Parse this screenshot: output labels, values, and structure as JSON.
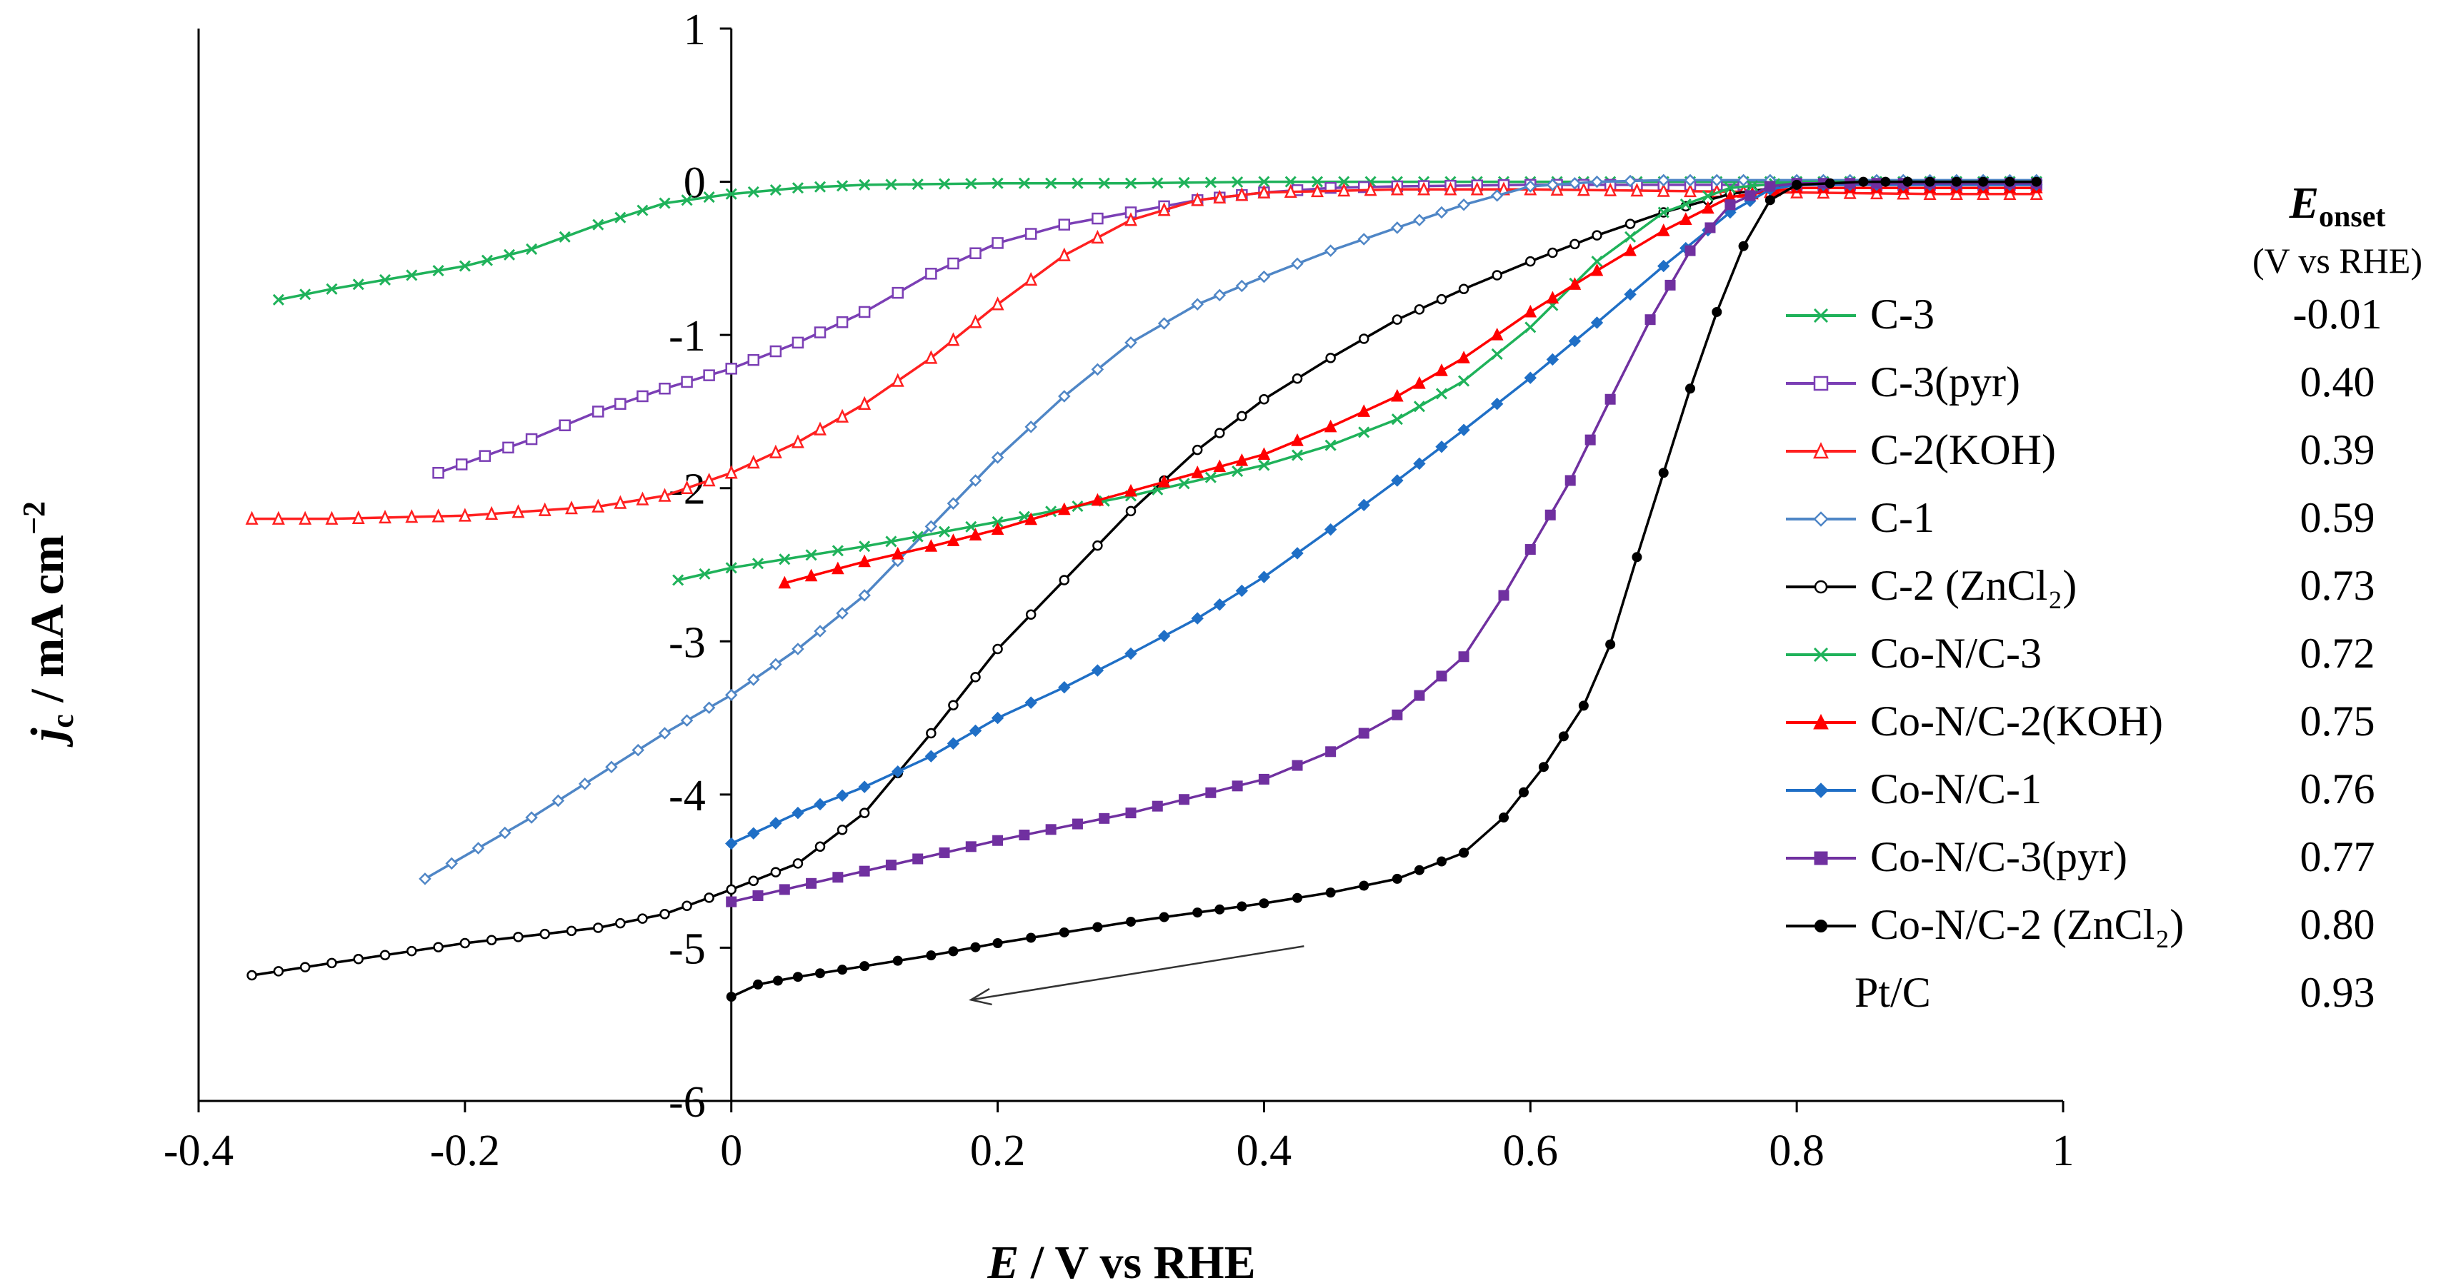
{
  "chart_data": {
    "type": "line",
    "title": "",
    "xlabel": {
      "italic": "E",
      "rest": " / V vs RHE"
    },
    "ylabel": {
      "italic": "j",
      "sub": "c",
      "rest": " / mA cm",
      "sup": "−2"
    },
    "xlim": [
      -0.4,
      1.0
    ],
    "ylim": [
      -6,
      1
    ],
    "xticks": [
      "-0.4",
      "-0.2",
      "0",
      "0.2",
      "0.4",
      "0.6",
      "0.8",
      "1"
    ],
    "yticks": [
      "-6",
      "-5",
      "-4",
      "-3",
      "-2",
      "-1",
      "0",
      "1"
    ],
    "grid": false,
    "onset_header": {
      "symbol": "E",
      "sub": "onset",
      "units": "(V vs RHE)"
    },
    "scan_direction_arrow": {
      "from": [
        0.43,
        -4.99
      ],
      "to": [
        0.18,
        -5.34
      ]
    },
    "series": [
      {
        "name": "C-3",
        "color": "#1fb25a",
        "marker": "x",
        "onset": "-0.01",
        "points": [
          [
            -0.34,
            -0.77
          ],
          [
            -0.3,
            -0.7
          ],
          [
            -0.26,
            -0.64
          ],
          [
            -0.2,
            -0.55
          ],
          [
            -0.15,
            -0.44
          ],
          [
            -0.1,
            -0.28
          ],
          [
            -0.05,
            -0.14
          ],
          [
            0.0,
            -0.08
          ],
          [
            0.05,
            -0.04
          ],
          [
            0.1,
            -0.02
          ],
          [
            0.2,
            -0.01
          ],
          [
            0.3,
            -0.01
          ],
          [
            0.4,
            0.0
          ],
          [
            0.5,
            0.0
          ],
          [
            0.6,
            0.0
          ],
          [
            0.7,
            0.0
          ],
          [
            0.8,
            0.0
          ],
          [
            0.9,
            0.0
          ],
          [
            0.98,
            0.0
          ]
        ]
      },
      {
        "name": "C-3(pyr)",
        "color": "#7b3fb5",
        "marker": "square-open",
        "onset": "0.40",
        "points": [
          [
            -0.22,
            -1.9
          ],
          [
            -0.15,
            -1.68
          ],
          [
            -0.1,
            -1.5
          ],
          [
            -0.05,
            -1.35
          ],
          [
            0.0,
            -1.22
          ],
          [
            0.05,
            -1.05
          ],
          [
            0.1,
            -0.85
          ],
          [
            0.15,
            -0.6
          ],
          [
            0.2,
            -0.4
          ],
          [
            0.25,
            -0.28
          ],
          [
            0.3,
            -0.2
          ],
          [
            0.35,
            -0.12
          ],
          [
            0.4,
            -0.07
          ],
          [
            0.45,
            -0.04
          ],
          [
            0.5,
            -0.03
          ],
          [
            0.6,
            -0.02
          ],
          [
            0.7,
            -0.02
          ],
          [
            0.8,
            -0.02
          ],
          [
            0.9,
            -0.02
          ],
          [
            0.98,
            -0.02
          ]
        ]
      },
      {
        "name": "C-2(KOH)",
        "color": "#ff2020",
        "marker": "triangle-open",
        "onset": "0.39",
        "points": [
          [
            -0.36,
            -2.2
          ],
          [
            -0.3,
            -2.2
          ],
          [
            -0.2,
            -2.18
          ],
          [
            -0.1,
            -2.12
          ],
          [
            -0.05,
            -2.05
          ],
          [
            0.0,
            -1.9
          ],
          [
            0.05,
            -1.7
          ],
          [
            0.1,
            -1.45
          ],
          [
            0.15,
            -1.15
          ],
          [
            0.2,
            -0.8
          ],
          [
            0.25,
            -0.48
          ],
          [
            0.3,
            -0.25
          ],
          [
            0.35,
            -0.12
          ],
          [
            0.4,
            -0.07
          ],
          [
            0.5,
            -0.05
          ],
          [
            0.6,
            -0.05
          ],
          [
            0.7,
            -0.06
          ],
          [
            0.8,
            -0.07
          ],
          [
            0.9,
            -0.08
          ],
          [
            0.98,
            -0.08
          ]
        ]
      },
      {
        "name": "C-1",
        "color": "#4f86c6",
        "marker": "diamond-open",
        "onset": "0.59",
        "points": [
          [
            -0.23,
            -4.55
          ],
          [
            -0.15,
            -4.15
          ],
          [
            -0.05,
            -3.6
          ],
          [
            0.0,
            -3.35
          ],
          [
            0.05,
            -3.05
          ],
          [
            0.1,
            -2.7
          ],
          [
            0.15,
            -2.25
          ],
          [
            0.2,
            -1.8
          ],
          [
            0.25,
            -1.4
          ],
          [
            0.3,
            -1.05
          ],
          [
            0.35,
            -0.8
          ],
          [
            0.4,
            -0.62
          ],
          [
            0.45,
            -0.45
          ],
          [
            0.5,
            -0.3
          ],
          [
            0.55,
            -0.15
          ],
          [
            0.6,
            -0.03
          ],
          [
            0.65,
            0.0
          ],
          [
            0.7,
            0.01
          ],
          [
            0.8,
            0.01
          ],
          [
            0.9,
            0.01
          ],
          [
            0.98,
            0.01
          ]
        ]
      },
      {
        "name": "C-2 (ZnCl₂)",
        "color": "#000000",
        "marker": "circle-open",
        "onset": "0.73",
        "points": [
          [
            -0.36,
            -5.18
          ],
          [
            -0.3,
            -5.1
          ],
          [
            -0.2,
            -4.97
          ],
          [
            -0.1,
            -4.87
          ],
          [
            -0.05,
            -4.78
          ],
          [
            0.0,
            -4.62
          ],
          [
            0.05,
            -4.45
          ],
          [
            0.1,
            -4.12
          ],
          [
            0.15,
            -3.6
          ],
          [
            0.2,
            -3.05
          ],
          [
            0.25,
            -2.6
          ],
          [
            0.3,
            -2.15
          ],
          [
            0.35,
            -1.75
          ],
          [
            0.4,
            -1.42
          ],
          [
            0.45,
            -1.15
          ],
          [
            0.5,
            -0.9
          ],
          [
            0.55,
            -0.7
          ],
          [
            0.6,
            -0.52
          ],
          [
            0.65,
            -0.35
          ],
          [
            0.7,
            -0.2
          ],
          [
            0.75,
            -0.08
          ],
          [
            0.8,
            -0.02
          ],
          [
            0.9,
            -0.01
          ],
          [
            0.98,
            -0.01
          ]
        ]
      },
      {
        "name": "Co-N/C-3",
        "color": "#1fb25a",
        "marker": "x",
        "onset": "0.72",
        "points": [
          [
            -0.04,
            -2.6
          ],
          [
            0.0,
            -2.52
          ],
          [
            0.1,
            -2.38
          ],
          [
            0.2,
            -2.22
          ],
          [
            0.3,
            -2.05
          ],
          [
            0.4,
            -1.85
          ],
          [
            0.45,
            -1.72
          ],
          [
            0.5,
            -1.55
          ],
          [
            0.55,
            -1.3
          ],
          [
            0.6,
            -0.95
          ],
          [
            0.65,
            -0.52
          ],
          [
            0.7,
            -0.2
          ],
          [
            0.75,
            -0.04
          ],
          [
            0.8,
            0.0
          ],
          [
            0.9,
            0.0
          ],
          [
            0.98,
            0.0
          ]
        ]
      },
      {
        "name": "Co-N/C-2(KOH)",
        "color": "#ff0000",
        "marker": "triangle-filled",
        "onset": "0.75",
        "points": [
          [
            0.04,
            -2.62
          ],
          [
            0.1,
            -2.48
          ],
          [
            0.15,
            -2.38
          ],
          [
            0.2,
            -2.27
          ],
          [
            0.25,
            -2.14
          ],
          [
            0.3,
            -2.02
          ],
          [
            0.35,
            -1.9
          ],
          [
            0.4,
            -1.78
          ],
          [
            0.45,
            -1.6
          ],
          [
            0.5,
            -1.4
          ],
          [
            0.55,
            -1.15
          ],
          [
            0.6,
            -0.85
          ],
          [
            0.65,
            -0.58
          ],
          [
            0.7,
            -0.32
          ],
          [
            0.75,
            -0.1
          ],
          [
            0.8,
            -0.04
          ],
          [
            0.9,
            -0.04
          ],
          [
            0.98,
            -0.04
          ]
        ]
      },
      {
        "name": "Co-N/C-1",
        "color": "#1f6fc6",
        "marker": "diamond-filled",
        "onset": "0.76",
        "points": [
          [
            0.0,
            -4.32
          ],
          [
            0.05,
            -4.12
          ],
          [
            0.1,
            -3.95
          ],
          [
            0.15,
            -3.75
          ],
          [
            0.2,
            -3.5
          ],
          [
            0.25,
            -3.3
          ],
          [
            0.3,
            -3.08
          ],
          [
            0.35,
            -2.85
          ],
          [
            0.4,
            -2.58
          ],
          [
            0.45,
            -2.27
          ],
          [
            0.5,
            -1.95
          ],
          [
            0.55,
            -1.62
          ],
          [
            0.6,
            -1.28
          ],
          [
            0.65,
            -0.92
          ],
          [
            0.7,
            -0.55
          ],
          [
            0.75,
            -0.2
          ],
          [
            0.78,
            -0.05
          ],
          [
            0.8,
            -0.02
          ],
          [
            0.9,
            -0.02
          ],
          [
            0.98,
            -0.02
          ]
        ]
      },
      {
        "name": "Co-N/C-3(pyr)",
        "color": "#7030a0",
        "marker": "square-filled",
        "onset": "0.77",
        "points": [
          [
            0.0,
            -4.7
          ],
          [
            0.1,
            -4.5
          ],
          [
            0.2,
            -4.3
          ],
          [
            0.3,
            -4.12
          ],
          [
            0.4,
            -3.9
          ],
          [
            0.45,
            -3.72
          ],
          [
            0.5,
            -3.48
          ],
          [
            0.55,
            -3.1
          ],
          [
            0.58,
            -2.7
          ],
          [
            0.6,
            -2.4
          ],
          [
            0.63,
            -1.95
          ],
          [
            0.66,
            -1.42
          ],
          [
            0.69,
            -0.9
          ],
          [
            0.72,
            -0.45
          ],
          [
            0.75,
            -0.15
          ],
          [
            0.78,
            -0.03
          ],
          [
            0.8,
            -0.01
          ],
          [
            0.9,
            -0.01
          ],
          [
            0.98,
            -0.01
          ]
        ]
      },
      {
        "name": "Co-N/C-2 (ZnCl₂)",
        "color": "#000000",
        "marker": "circle-filled",
        "onset": "0.80",
        "points": [
          [
            0.0,
            -5.32
          ],
          [
            0.02,
            -5.24
          ],
          [
            0.05,
            -5.19
          ],
          [
            0.1,
            -5.12
          ],
          [
            0.15,
            -5.05
          ],
          [
            0.2,
            -4.97
          ],
          [
            0.25,
            -4.9
          ],
          [
            0.3,
            -4.83
          ],
          [
            0.35,
            -4.77
          ],
          [
            0.4,
            -4.71
          ],
          [
            0.45,
            -4.64
          ],
          [
            0.5,
            -4.55
          ],
          [
            0.55,
            -4.38
          ],
          [
            0.58,
            -4.15
          ],
          [
            0.61,
            -3.82
          ],
          [
            0.64,
            -3.42
          ],
          [
            0.66,
            -3.02
          ],
          [
            0.68,
            -2.45
          ],
          [
            0.7,
            -1.9
          ],
          [
            0.72,
            -1.35
          ],
          [
            0.74,
            -0.85
          ],
          [
            0.76,
            -0.42
          ],
          [
            0.78,
            -0.12
          ],
          [
            0.8,
            -0.02
          ],
          [
            0.85,
            0.0
          ],
          [
            0.9,
            0.0
          ],
          [
            0.98,
            0.0
          ]
        ]
      },
      {
        "name": "Pt/C",
        "color": "",
        "marker": "",
        "onset": "0.93",
        "points": []
      }
    ]
  }
}
